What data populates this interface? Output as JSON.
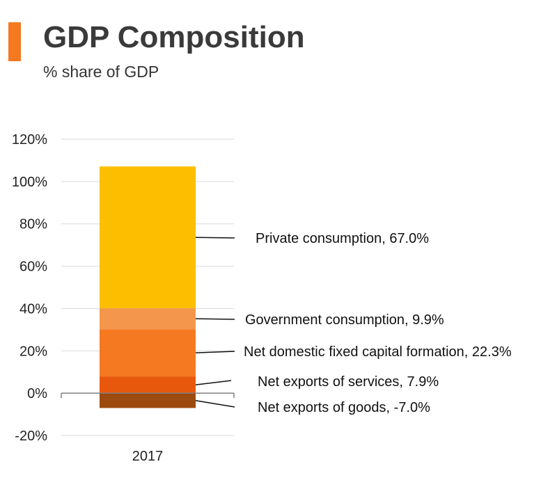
{
  "header": {
    "title": "GDP Composition",
    "subtitle": "% share of GDP",
    "accent_color": "#F47920"
  },
  "chart_data": {
    "type": "bar",
    "stacked": true,
    "title": "GDP Composition",
    "subtitle": "% share of GDP",
    "categories": [
      "2017"
    ],
    "ylim": [
      -20,
      120
    ],
    "yticks": [
      -20,
      0,
      20,
      40,
      60,
      80,
      100,
      120
    ],
    "ytick_labels": [
      "-20%",
      "0%",
      "20%",
      "40%",
      "60%",
      "80%",
      "100%",
      "120%"
    ],
    "grid": true,
    "series": [
      {
        "name": "Net exports of goods",
        "values": [
          -7.0
        ],
        "color": "#9C4A0E",
        "label": "Net exports of goods, -7.0%"
      },
      {
        "name": "Net exports of services",
        "values": [
          7.9
        ],
        "color": "#E8580C",
        "label": "Net exports of services, 7.9%"
      },
      {
        "name": "Net domestic fixed capital formation",
        "values": [
          22.3
        ],
        "color": "#F47920",
        "label": "Net domestic fixed capital formation, 22.3%"
      },
      {
        "name": "Government consumption",
        "values": [
          9.9
        ],
        "color": "#F4964C",
        "label": "Government consumption, 9.9%"
      },
      {
        "name": "Private consumption",
        "values": [
          67.0
        ],
        "color": "#FDBE00",
        "label": "Private consumption, 67.0%"
      }
    ]
  }
}
